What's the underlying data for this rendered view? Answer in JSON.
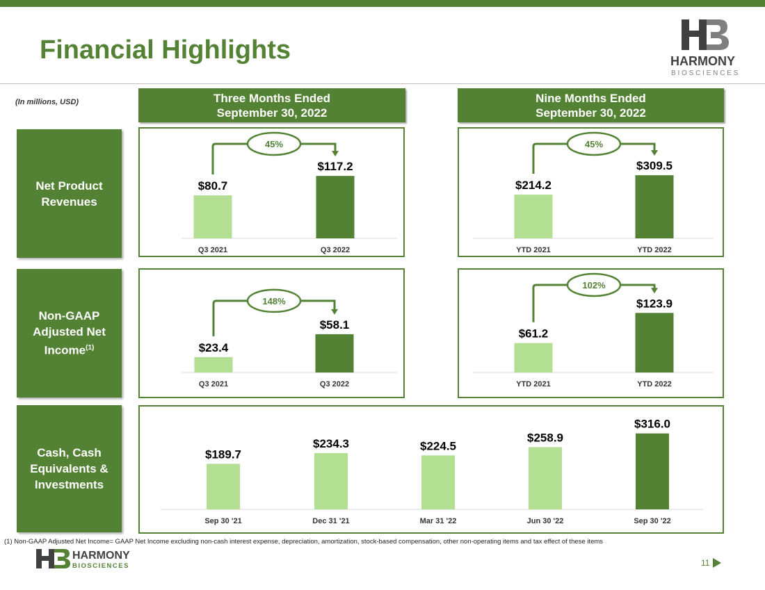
{
  "slide": {
    "title": "Financial Highlights",
    "units": "(In millions, USD)",
    "col_headers": [
      {
        "line1": "Three Months Ended",
        "line2": "September 30, 2022"
      },
      {
        "line1": "Nine Months Ended",
        "line2": "September 30, 2022"
      }
    ],
    "row_labels": [
      {
        "line1": "Net Product",
        "line2": "Revenues"
      },
      {
        "line1": "Non-GAAP",
        "line2": "Adjusted Net",
        "line3": "Income",
        "sup": "(1)"
      },
      {
        "line1": "Cash, Cash",
        "line2": "Equivalents &",
        "line3": "Investments"
      }
    ],
    "footnote": "(1) Non-GAAP Adjusted Net Income= GAAP Net Income excluding non-cash interest expense, depreciation, amortization, stock-based compensation, other non-operating items and tax effect of these items",
    "page_number": "11",
    "logo": {
      "name": "HARMONY",
      "tagline": "BIOSCIENCES"
    }
  },
  "colors": {
    "dark_green": "#548235",
    "light_green": "#b3df93",
    "grey_text": "#333333"
  },
  "chart_data": [
    {
      "type": "bar",
      "id": "revenue_q3",
      "categories": [
        "Q3 2021",
        "Q3 2022"
      ],
      "values": [
        80.7,
        117.2
      ],
      "labels": [
        "$80.7",
        "$117.2"
      ],
      "growth": "45%",
      "ylim": [
        0,
        180
      ]
    },
    {
      "type": "bar",
      "id": "revenue_ytd",
      "categories": [
        "YTD 2021",
        "YTD 2022"
      ],
      "values": [
        214.2,
        309.5
      ],
      "labels": [
        "$214.2",
        "$309.5"
      ],
      "growth": "45%",
      "ylim": [
        0,
        470
      ]
    },
    {
      "type": "bar",
      "id": "income_q3",
      "categories": [
        "Q3 2021",
        "Q3 2022"
      ],
      "values": [
        23.4,
        58.1
      ],
      "labels": [
        "$23.4",
        "$58.1"
      ],
      "growth": "148%",
      "ylim": [
        0,
        135
      ]
    },
    {
      "type": "bar",
      "id": "income_ytd",
      "categories": [
        "YTD 2021",
        "YTD  2022"
      ],
      "values": [
        61.2,
        123.9
      ],
      "labels": [
        "$61.2",
        "$123.9"
      ],
      "growth": "102%",
      "ylim": [
        0,
        185
      ]
    },
    {
      "type": "bar",
      "id": "cash",
      "categories": [
        "Sep 30 '21",
        "Dec 31 '21",
        "Mar 31 '22",
        "Jun 30 '22",
        "Sep 30 '22"
      ],
      "values": [
        189.7,
        234.3,
        224.5,
        258.9,
        316.0
      ],
      "labels": [
        "$189.7",
        "$234.3",
        "$224.5",
        "$258.9",
        "$316.0"
      ],
      "ylim": [
        0,
        370
      ]
    }
  ]
}
